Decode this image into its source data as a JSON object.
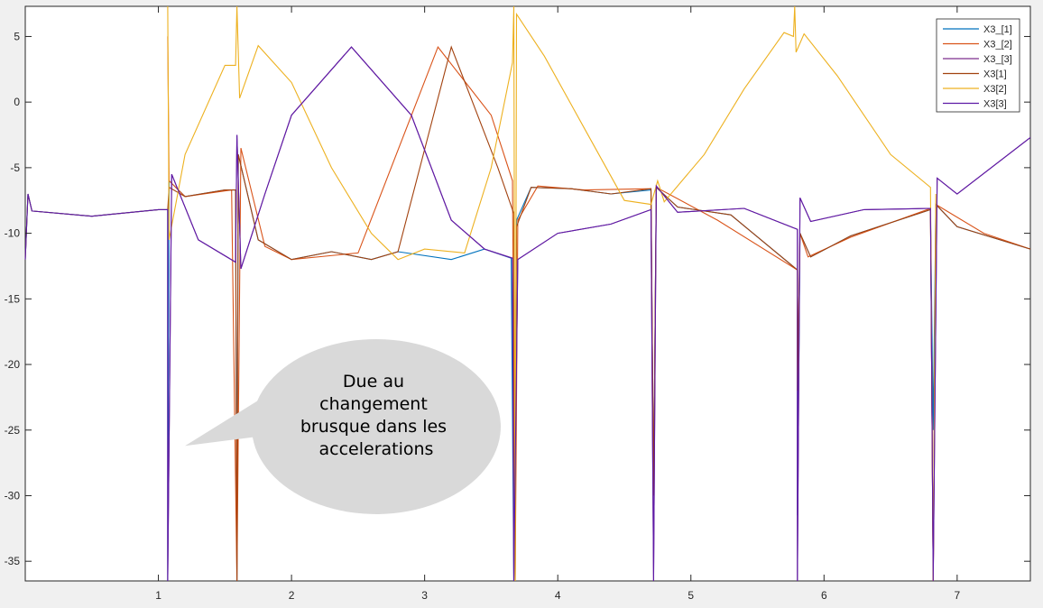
{
  "chart_data": {
    "type": "line",
    "title": "",
    "xlabel": "",
    "ylabel": "",
    "xlim": [
      0,
      7.55
    ],
    "ylim": [
      -36.5,
      7.3
    ],
    "xticks": [
      1,
      2,
      3,
      4,
      5,
      6,
      7
    ],
    "yticks": [
      5,
      0,
      -5,
      -10,
      -15,
      -20,
      -25,
      -30,
      -35
    ],
    "grid": false,
    "legend_position": "top-right",
    "series": [
      {
        "name": "X3_[1]",
        "color": "#0072bd",
        "values": [
          [
            0,
            -12
          ],
          [
            0.02,
            -7
          ],
          [
            0.05,
            -8.3
          ],
          [
            0.5,
            -8.7
          ],
          [
            1.0,
            -8.2
          ],
          [
            1.07,
            -8.2
          ],
          [
            1.07,
            -36.5
          ],
          [
            1.08,
            -6
          ],
          [
            1.2,
            -7.2
          ],
          [
            1.5,
            -6.7
          ],
          [
            1.58,
            -6.7
          ],
          [
            1.59,
            -36.5
          ],
          [
            1.6,
            -4
          ],
          [
            1.75,
            -10.5
          ],
          [
            2.0,
            -12
          ],
          [
            2.3,
            -11.4
          ],
          [
            2.6,
            -12
          ],
          [
            2.8,
            -11.4
          ],
          [
            3.2,
            -12
          ],
          [
            3.45,
            -11.2
          ],
          [
            3.65,
            -11.9
          ],
          [
            3.67,
            -36.5
          ],
          [
            3.69,
            -9
          ],
          [
            3.8,
            -6.5
          ],
          [
            4.1,
            -6.6
          ],
          [
            4.4,
            -7.0
          ],
          [
            4.7,
            -6.7
          ],
          [
            4.72,
            -30
          ],
          [
            4.74,
            -6.5
          ],
          [
            4.9,
            -8.0
          ],
          [
            5.3,
            -8.6
          ],
          [
            5.8,
            -12.8
          ],
          [
            5.8,
            -31.5
          ],
          [
            5.82,
            -10
          ],
          [
            5.9,
            -11.8
          ],
          [
            6.2,
            -10.2
          ],
          [
            6.8,
            -8.2
          ],
          [
            6.82,
            -25
          ],
          [
            6.84,
            -7.8
          ],
          [
            7.0,
            -9.5
          ],
          [
            7.55,
            -11.2
          ]
        ]
      },
      {
        "name": "X3_[2]",
        "color": "#d95319",
        "values": [
          [
            1.07,
            5
          ],
          [
            1.08,
            -6
          ],
          [
            1.2,
            -7.2
          ],
          [
            1.55,
            -6.7
          ],
          [
            1.59,
            -36.5
          ],
          [
            1.62,
            -3.5
          ],
          [
            1.8,
            -11
          ],
          [
            2.0,
            -12
          ],
          [
            2.5,
            -11.5
          ],
          [
            3.1,
            4.2
          ],
          [
            3.5,
            -1
          ],
          [
            3.66,
            -6
          ],
          [
            3.68,
            -36.5
          ],
          [
            3.7,
            -9
          ],
          [
            3.85,
            -6.4
          ],
          [
            4.2,
            -6.7
          ],
          [
            4.7,
            -6.6
          ],
          [
            4.72,
            -30
          ],
          [
            4.74,
            -6.5
          ],
          [
            5.2,
            -9
          ],
          [
            5.8,
            -12.8
          ],
          [
            5.8,
            -22
          ],
          [
            5.82,
            -10
          ],
          [
            5.88,
            -11.8
          ],
          [
            6.2,
            -10.3
          ],
          [
            6.8,
            -8.1
          ],
          [
            6.82,
            -36.5
          ],
          [
            6.84,
            -7.8
          ],
          [
            7.2,
            -10
          ],
          [
            7.55,
            -11.2
          ]
        ]
      },
      {
        "name": "X3_[3]",
        "color": "#7e2f8e",
        "values": [
          [
            1.07,
            -8.2
          ],
          [
            1.07,
            -36.5
          ],
          [
            1.1,
            -5.5
          ],
          [
            1.3,
            -10.5
          ],
          [
            1.58,
            -12.2
          ],
          [
            1.59,
            -2.5
          ],
          [
            1.62,
            -12.7
          ],
          [
            1.8,
            -7
          ],
          [
            2.0,
            -1
          ],
          [
            2.45,
            4.2
          ],
          [
            2.9,
            -1
          ],
          [
            3.2,
            -9
          ],
          [
            3.45,
            -11.2
          ],
          [
            3.66,
            -11.9
          ],
          [
            3.67,
            -36.5
          ],
          [
            3.7,
            -12
          ],
          [
            4.0,
            -10
          ],
          [
            4.4,
            -9.3
          ],
          [
            4.7,
            -8.2
          ],
          [
            4.72,
            -36.5
          ],
          [
            4.74,
            -6.4
          ],
          [
            4.9,
            -8.4
          ],
          [
            5.4,
            -8.1
          ],
          [
            5.8,
            -9.7
          ],
          [
            5.8,
            -36.5
          ],
          [
            5.82,
            -7.3
          ],
          [
            5.9,
            -9.1
          ],
          [
            6.3,
            -8.2
          ],
          [
            6.8,
            -8.1
          ],
          [
            6.82,
            -36.5
          ],
          [
            6.85,
            -5.8
          ],
          [
            7.0,
            -7
          ],
          [
            7.55,
            -2.7
          ]
        ]
      },
      {
        "name": "X3[1]",
        "color": "#a2420f",
        "values": [
          [
            0,
            -12
          ],
          [
            0.02,
            -7
          ],
          [
            0.05,
            -8.3
          ],
          [
            0.5,
            -8.7
          ],
          [
            1.0,
            -8.2
          ],
          [
            1.07,
            -8.2
          ],
          [
            1.08,
            -6.5
          ],
          [
            1.2,
            -7.2
          ],
          [
            1.5,
            -6.7
          ],
          [
            1.58,
            -6.7
          ],
          [
            1.59,
            -36.5
          ],
          [
            1.6,
            -4
          ],
          [
            1.75,
            -10.5
          ],
          [
            2.0,
            -12
          ],
          [
            2.3,
            -11.4
          ],
          [
            2.6,
            -12
          ],
          [
            2.8,
            -11.4
          ],
          [
            3.2,
            4.2
          ],
          [
            3.55,
            -5
          ],
          [
            3.67,
            -8.5
          ],
          [
            3.68,
            -36.5
          ],
          [
            3.69,
            -9.5
          ],
          [
            3.8,
            -6.5
          ],
          [
            4.1,
            -6.6
          ],
          [
            4.4,
            -7.0
          ],
          [
            4.7,
            -6.6
          ],
          [
            4.72,
            -30
          ],
          [
            4.74,
            -6.5
          ],
          [
            4.9,
            -8.0
          ],
          [
            5.3,
            -8.6
          ],
          [
            5.8,
            -12.8
          ],
          [
            5.8,
            -22
          ],
          [
            5.82,
            -10
          ],
          [
            5.9,
            -11.8
          ],
          [
            6.2,
            -10.2
          ],
          [
            6.8,
            -8.2
          ],
          [
            6.82,
            -36.5
          ],
          [
            6.84,
            -7.8
          ],
          [
            7.0,
            -9.5
          ],
          [
            7.55,
            -11.2
          ]
        ]
      },
      {
        "name": "X3[2]",
        "color": "#edb120",
        "values": [
          [
            1.07,
            7.3
          ],
          [
            1.08,
            -10.5
          ],
          [
            1.2,
            -4
          ],
          [
            1.5,
            2.8
          ],
          [
            1.58,
            2.8
          ],
          [
            1.59,
            7.3
          ],
          [
            1.61,
            0.3
          ],
          [
            1.75,
            4.3
          ],
          [
            2.0,
            1.5
          ],
          [
            2.3,
            -5
          ],
          [
            2.6,
            -10
          ],
          [
            2.8,
            -12
          ],
          [
            3.0,
            -11.2
          ],
          [
            3.3,
            -11.5
          ],
          [
            3.5,
            -5
          ],
          [
            3.66,
            3
          ],
          [
            3.67,
            7.3
          ],
          [
            3.68,
            -36.5
          ],
          [
            3.69,
            6.7
          ],
          [
            3.9,
            3.5
          ],
          [
            4.2,
            -2
          ],
          [
            4.5,
            -7.5
          ],
          [
            4.7,
            -7.8
          ],
          [
            4.75,
            -6
          ],
          [
            4.8,
            -7.6
          ],
          [
            5.1,
            -4
          ],
          [
            5.4,
            1
          ],
          [
            5.7,
            5.3
          ],
          [
            5.77,
            5
          ],
          [
            5.78,
            7.3
          ],
          [
            5.79,
            3.8
          ],
          [
            5.85,
            5.2
          ],
          [
            6.1,
            2
          ],
          [
            6.5,
            -4
          ],
          [
            6.8,
            -6.5
          ],
          [
            6.82,
            -36.5
          ],
          [
            6.84,
            -7
          ]
        ]
      },
      {
        "name": "X3[3]",
        "color": "#5e1aa6",
        "values": [
          [
            0,
            -12
          ],
          [
            0.02,
            -7
          ],
          [
            0.05,
            -8.3
          ],
          [
            0.5,
            -8.7
          ],
          [
            1.0,
            -8.2
          ],
          [
            1.07,
            -8.2
          ],
          [
            1.07,
            -36.5
          ],
          [
            1.1,
            -5.5
          ],
          [
            1.3,
            -10.5
          ],
          [
            1.58,
            -12.2
          ],
          [
            1.59,
            -2.5
          ],
          [
            1.62,
            -12.7
          ],
          [
            1.8,
            -7
          ],
          [
            2.0,
            -1
          ],
          [
            2.45,
            4.2
          ],
          [
            2.9,
            -1
          ],
          [
            3.2,
            -9
          ],
          [
            3.45,
            -11.2
          ],
          [
            3.66,
            -11.9
          ],
          [
            3.67,
            -36.5
          ],
          [
            3.7,
            -12
          ],
          [
            4.0,
            -10
          ],
          [
            4.4,
            -9.3
          ],
          [
            4.7,
            -8.2
          ],
          [
            4.72,
            -36.5
          ],
          [
            4.74,
            -6.4
          ],
          [
            4.9,
            -8.4
          ],
          [
            5.4,
            -8.1
          ],
          [
            5.8,
            -9.7
          ],
          [
            5.8,
            -36.5
          ],
          [
            5.82,
            -7.3
          ],
          [
            5.9,
            -9.1
          ],
          [
            6.3,
            -8.2
          ],
          [
            6.8,
            -8.1
          ],
          [
            6.82,
            -36.5
          ],
          [
            6.85,
            -5.8
          ],
          [
            7.0,
            -7
          ],
          [
            7.55,
            -2.7
          ]
        ]
      }
    ],
    "annotation": {
      "lines": [
        "Due au",
        "changement",
        "brusque dans les",
        "accelerations"
      ],
      "pointer_x": 1.2,
      "pointer_y": -26.2
    }
  }
}
